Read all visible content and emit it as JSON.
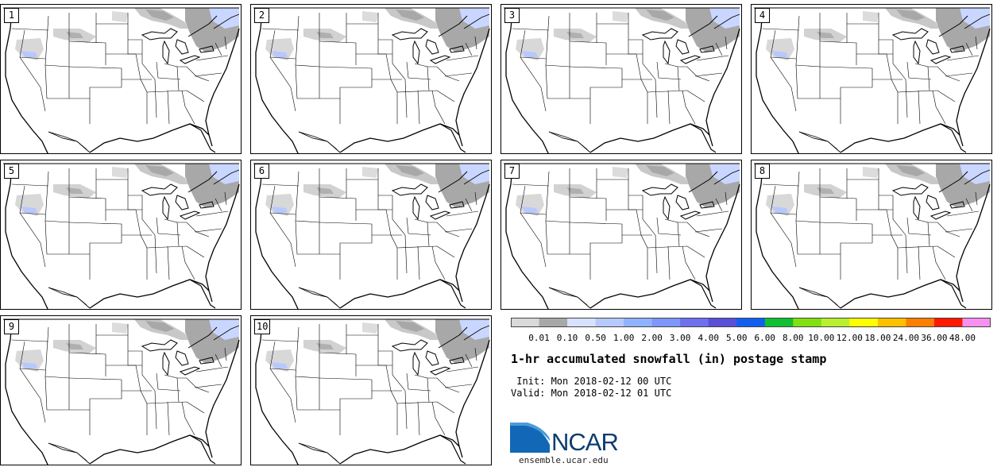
{
  "title": "1-hr accumulated snowfall (in) postage stamp",
  "init": " Init: Mon 2018-02-12 00 UTC",
  "valid": "Valid: Mon 2018-02-12 01 UTC",
  "members": [
    "1",
    "2",
    "3",
    "4",
    "5",
    "6",
    "7",
    "8",
    "9",
    "10"
  ],
  "colorbar": {
    "labels": [
      "0.01",
      "0.10",
      "0.50",
      "1.00",
      "2.00",
      "3.00",
      "4.00",
      "5.00",
      "6.00",
      "8.00",
      "10.00",
      "12.00",
      "18.00",
      "24.00",
      "36.00",
      "48.00"
    ],
    "colors": [
      "#d9d9d9",
      "#a8a8a8",
      "#d6e2ff",
      "#b5c9ff",
      "#8eb2ff",
      "#7f96ff",
      "#6e70f0",
      "#5a4fd8",
      "#1060f0",
      "#10c030",
      "#80e010",
      "#b8f030",
      "#ffff00",
      "#ffc000",
      "#ff7e00",
      "#ff1800",
      "#f890f0"
    ]
  },
  "logo": {
    "name": "NCAR",
    "site": "ensemble.ucar.edu"
  }
}
